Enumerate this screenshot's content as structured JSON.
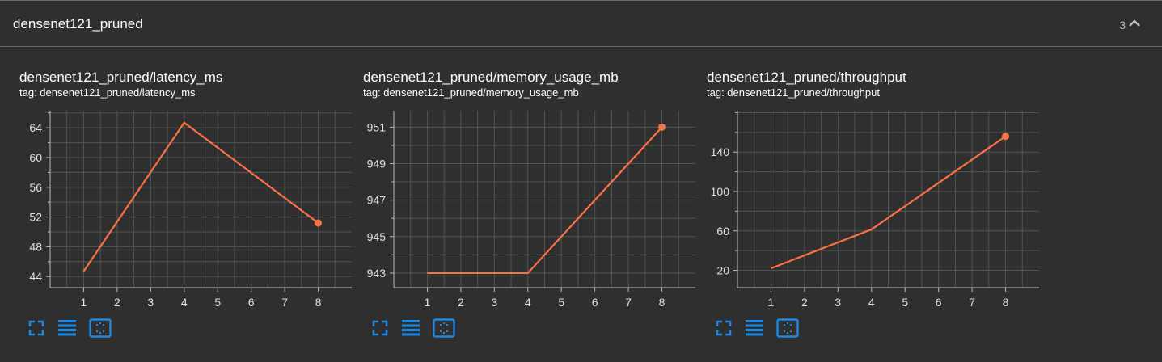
{
  "group": {
    "title": "densenet121_pruned",
    "count": "3"
  },
  "icons": {
    "collapse": "chevron-up-icon",
    "fullscreen": "fullscreen-icon",
    "data": "list-icon",
    "fit": "fit-domain-icon"
  },
  "colors": {
    "line": "#ff7043",
    "grid": "#555555",
    "axis": "#bdbdbd",
    "tool": "#1e88e5"
  },
  "chart_data": [
    {
      "type": "line",
      "title": "densenet121_pruned/latency_ms",
      "tag": "tag: densenet121_pruned/latency_ms",
      "x": [
        1,
        4,
        8
      ],
      "y": [
        44.7,
        64.7,
        51.2
      ],
      "xlim": [
        0,
        9
      ],
      "ylim": [
        42.5,
        66.3
      ],
      "xticks": [
        1,
        2,
        3,
        4,
        5,
        6,
        7,
        8
      ],
      "yticks": [
        44,
        48,
        52,
        56,
        60,
        64
      ],
      "grid": true
    },
    {
      "type": "line",
      "title": "densenet121_pruned/memory_usage_mb",
      "tag": "tag: densenet121_pruned/memory_usage_mb",
      "x": [
        1,
        4,
        8
      ],
      "y": [
        943,
        943,
        951
      ],
      "xlim": [
        0,
        9
      ],
      "ylim": [
        942.2,
        951.9
      ],
      "xticks": [
        1,
        2,
        3,
        4,
        5,
        6,
        7,
        8
      ],
      "yticks": [
        943,
        945,
        947,
        949,
        951
      ],
      "grid": true
    },
    {
      "type": "line",
      "title": "densenet121_pruned/throughput",
      "tag": "tag: densenet121_pruned/throughput",
      "x": [
        1,
        4,
        8
      ],
      "y": [
        22,
        61.5,
        156
      ],
      "xlim": [
        0,
        9
      ],
      "ylim": [
        2.4,
        182
      ],
      "xticks": [
        1,
        2,
        3,
        4,
        5,
        6,
        7,
        8
      ],
      "yticks": [
        20,
        60,
        100,
        140
      ],
      "grid": true
    }
  ]
}
